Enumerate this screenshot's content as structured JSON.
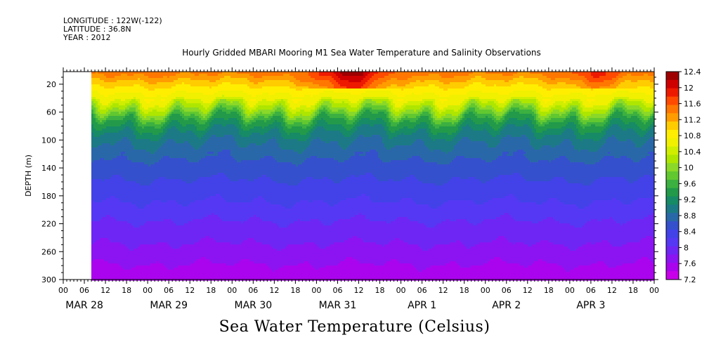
{
  "meta": {
    "longitude": "LONGITUDE : 122W(-122)",
    "latitude": "LATITUDE : 36.8N",
    "year": "YEAR : 2012"
  },
  "chart_data": {
    "type": "heatmap",
    "title": "Hourly Gridded MBARI Mooring M1 Sea Water Temperature and Salinity Observations",
    "xlabel": "",
    "ylabel": "DEPTH (m)",
    "colorbar_label": "Sea Water Temperature (Celsius)",
    "y_ticks": [
      20,
      60,
      100,
      140,
      180,
      220,
      260,
      300
    ],
    "ylim": [
      300,
      2
    ],
    "y_inverted": true,
    "x_hour_labels": [
      "00",
      "06",
      "12",
      "18",
      "00",
      "06",
      "12",
      "18",
      "00",
      "06",
      "12",
      "18",
      "00",
      "06",
      "12",
      "18",
      "00",
      "06",
      "12",
      "18",
      "00",
      "06",
      "12",
      "18",
      "00",
      "06",
      "12",
      "18",
      "00"
    ],
    "x_date_labels": [
      "MAR 28",
      "MAR 29",
      "MAR 30",
      "MAR 31",
      "APR  1",
      "APR  2",
      "APR  3"
    ],
    "data_start_hour": 8,
    "colorbar_ticks": [
      "12.4",
      "12",
      "11.6",
      "11.2",
      "10.8",
      "10.4",
      "10",
      "9.6",
      "9.2",
      "8.8",
      "8.4",
      "8",
      "7.6",
      "7.2"
    ],
    "colorbar_colors": [
      "#9e0000",
      "#cf0000",
      "#ee1a00",
      "#ff4a00",
      "#ff7700",
      "#ff9c00",
      "#ffcc00",
      "#ffee00",
      "#f0f000",
      "#d0ee00",
      "#aee600",
      "#8ad828",
      "#62c830",
      "#3cb040",
      "#229a4a",
      "#178a66",
      "#1c7a86",
      "#2968a8",
      "#3550cc",
      "#4242e8",
      "#5538f4",
      "#6e26f4",
      "#8c14f2",
      "#aa04ee",
      "#c800ea"
    ],
    "temperature_range": [
      7.2,
      12.4
    ],
    "profile": [
      {
        "depth": 5,
        "temp": 11.4
      },
      {
        "depth": 20,
        "temp": 11.0
      },
      {
        "depth": 40,
        "temp": 10.6
      },
      {
        "depth": 55,
        "temp": 10.1
      },
      {
        "depth": 70,
        "temp": 9.5
      },
      {
        "depth": 90,
        "temp": 9.05
      },
      {
        "depth": 110,
        "temp": 8.8
      },
      {
        "depth": 140,
        "temp": 8.55
      },
      {
        "depth": 180,
        "temp": 8.3
      },
      {
        "depth": 220,
        "temp": 8.0
      },
      {
        "depth": 260,
        "temp": 7.75
      },
      {
        "depth": 300,
        "temp": 7.45
      }
    ]
  }
}
